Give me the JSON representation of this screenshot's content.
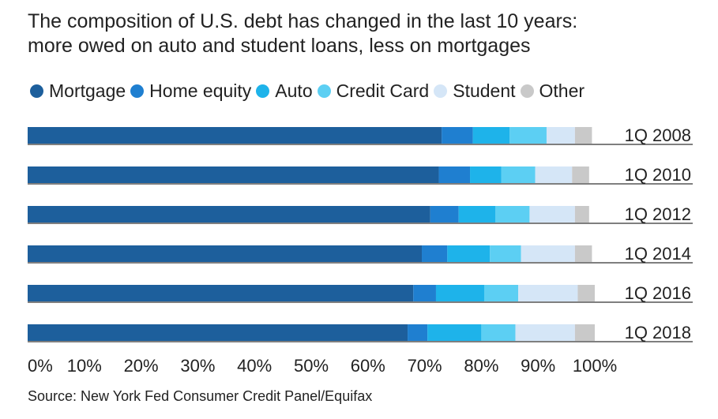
{
  "title_lines": [
    "The composition of U.S. debt has changed in the last 10 years:",
    "more owed on auto and student loans, less on mortgages"
  ],
  "source": "Source: New York Fed Consumer Credit Panel/Equifax",
  "colors": {
    "Mortgage": "#1d5f9c",
    "Home equity": "#1f7fd0",
    "Auto": "#1eb3ea",
    "Credit Card": "#5ccff3",
    "Student": "#d5e6f7",
    "Other": "#c9c9c9"
  },
  "chart_data": {
    "type": "bar",
    "orientation": "horizontal",
    "stacked": true,
    "categories": [
      "1Q 2008",
      "1Q 2010",
      "1Q 2012",
      "1Q 2014",
      "1Q 2016",
      "1Q 2018"
    ],
    "series": [
      {
        "name": "Mortgage",
        "values": [
          73,
          72.5,
          71,
          69.5,
          68,
          67
        ]
      },
      {
        "name": "Home equity",
        "values": [
          5.5,
          5.5,
          5,
          4.5,
          4,
          3.5
        ]
      },
      {
        "name": "Auto",
        "values": [
          6.5,
          5.5,
          6.5,
          7.5,
          8.5,
          9.5
        ]
      },
      {
        "name": "Credit Card",
        "values": [
          6.5,
          6,
          6,
          5.5,
          6,
          6
        ]
      },
      {
        "name": "Student",
        "values": [
          5,
          6.5,
          8,
          9.5,
          10.5,
          10.5
        ]
      },
      {
        "name": "Other",
        "values": [
          3,
          3,
          2.5,
          3,
          3,
          3.5
        ]
      }
    ],
    "x_ticks": [
      "0%",
      "10%",
      "20%",
      "30%",
      "40%",
      "50%",
      "60%",
      "70%",
      "80%",
      "90%",
      "100%"
    ],
    "xlim": [
      0,
      100
    ],
    "grid": false,
    "legend_position": "top"
  }
}
